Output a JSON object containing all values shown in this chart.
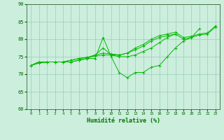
{
  "background_color": "#cceedd",
  "grid_color": "#99ccbb",
  "line_color": "#00bb00",
  "xlabel": "Humidité relative (%)",
  "xlabel_color": "#007700",
  "yticks": [
    60,
    65,
    70,
    75,
    80,
    85,
    90
  ],
  "xticks": [
    0,
    1,
    2,
    3,
    4,
    5,
    6,
    7,
    8,
    9,
    10,
    11,
    12,
    13,
    14,
    15,
    16,
    17,
    18,
    19,
    20,
    21,
    22,
    23
  ],
  "xlim": [
    -0.5,
    23.5
  ],
  "ylim": [
    60,
    90
  ],
  "curves_x": [
    [
      0,
      1,
      2,
      3,
      4,
      5,
      6,
      7,
      8,
      9,
      10,
      11,
      12,
      13,
      14,
      15,
      16,
      17,
      18,
      19,
      20,
      21
    ],
    [
      0,
      1,
      2,
      3,
      4,
      5,
      6,
      7,
      8,
      9,
      10,
      11,
      12,
      13,
      14,
      15,
      16,
      17,
      18
    ],
    [
      0,
      1,
      2,
      3,
      4,
      5,
      6,
      7,
      8,
      9,
      10,
      11,
      12,
      13,
      14,
      15,
      16,
      17,
      18,
      19,
      20,
      21,
      22,
      23
    ],
    [
      0,
      1,
      2,
      3,
      4,
      5,
      6,
      7,
      8,
      9,
      10,
      11,
      12,
      13,
      14,
      15,
      16,
      17,
      18,
      19,
      20,
      21,
      22,
      23
    ]
  ],
  "curves_y": [
    [
      72.5,
      73.5,
      73.5,
      73.5,
      73.5,
      73.5,
      74.0,
      74.5,
      74.5,
      80.5,
      75.0,
      70.5,
      69.0,
      70.5,
      70.5,
      72.0,
      72.5,
      75.0,
      77.5,
      79.5,
      80.5,
      83.0
    ],
    [
      72.5,
      73.5,
      73.5,
      73.5,
      73.5,
      73.5,
      74.0,
      74.5,
      75.5,
      77.5,
      75.5,
      75.0,
      75.0,
      75.5,
      76.5,
      77.5,
      79.0,
      80.5,
      81.5
    ],
    [
      72.5,
      73.2,
      73.5,
      73.5,
      73.5,
      74.0,
      74.5,
      74.8,
      75.2,
      75.5,
      75.5,
      75.5,
      76.0,
      77.0,
      78.0,
      79.5,
      80.5,
      81.0,
      81.5,
      80.0,
      80.5,
      81.2,
      81.5,
      83.5
    ],
    [
      72.5,
      73.2,
      73.5,
      73.5,
      73.5,
      74.0,
      74.5,
      74.8,
      75.5,
      76.0,
      75.8,
      75.5,
      76.0,
      77.5,
      78.5,
      80.0,
      81.0,
      81.5,
      82.0,
      80.5,
      80.8,
      81.5,
      81.8,
      83.8
    ]
  ],
  "figwidth": 3.2,
  "figheight": 2.0,
  "dpi": 100
}
